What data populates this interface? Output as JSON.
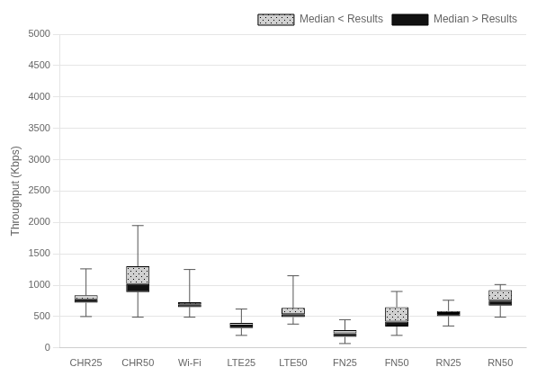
{
  "chart_data": {
    "type": "box",
    "categories": [
      "CHR25",
      "CHR50",
      "Wi-Fi",
      "LTE25",
      "LTE50",
      "FN25",
      "FN50",
      "RN25",
      "RN50"
    ],
    "whisker_low": [
      500,
      490,
      490,
      200,
      380,
      70,
      200,
      350,
      490
    ],
    "q1": [
      720,
      890,
      650,
      315,
      490,
      175,
      340,
      505,
      675
    ],
    "median": [
      775,
      1020,
      695,
      355,
      540,
      235,
      420,
      555,
      755
    ],
    "q3": [
      840,
      1300,
      730,
      400,
      640,
      285,
      650,
      590,
      920
    ],
    "whisker_high": [
      1260,
      1950,
      1250,
      620,
      1150,
      450,
      900,
      760,
      1010
    ],
    "series": [
      {
        "name": "Median < Results",
        "color": "#d0d0d0"
      },
      {
        "name": "Median > Results",
        "color": "#111111"
      }
    ],
    "color": "#555555",
    "ylabel": "Throughput (Kbps)",
    "ylim": [
      0,
      5000
    ],
    "yticks": [
      0,
      500,
      1000,
      1500,
      2000,
      2500,
      3000,
      3500,
      4000,
      4500,
      5000
    ],
    "grid": true,
    "legend": "upper right"
  }
}
